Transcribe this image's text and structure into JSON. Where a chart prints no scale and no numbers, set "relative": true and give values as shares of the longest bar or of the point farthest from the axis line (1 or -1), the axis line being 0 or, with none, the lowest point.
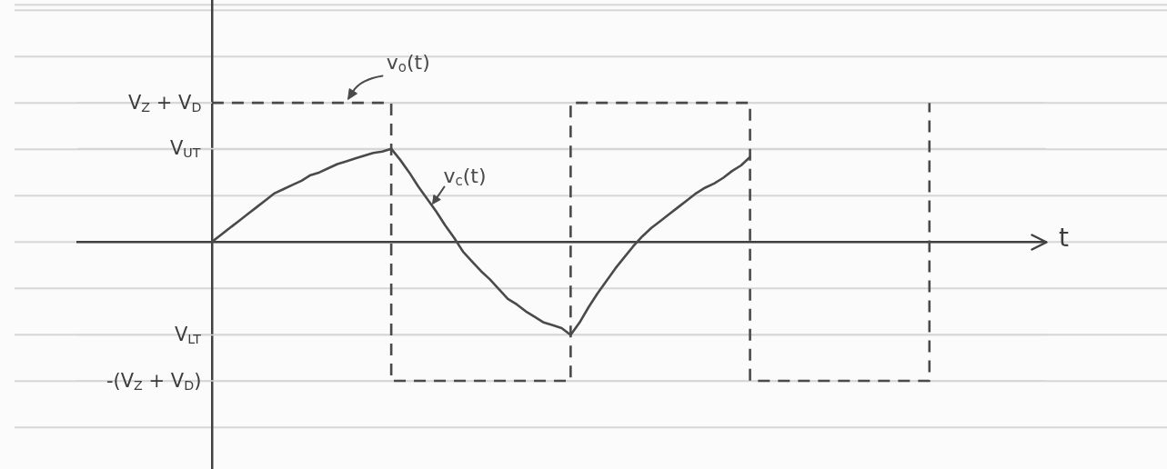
{
  "chart_data": {
    "type": "line",
    "xlabel": "t",
    "relative": true,
    "categories": [
      null,
      null,
      null,
      null,
      null,
      null,
      null,
      null,
      null,
      null,
      null,
      null,
      null,
      null,
      null,
      null,
      null,
      null,
      null,
      null,
      null,
      null,
      null,
      null,
      null,
      null,
      null,
      null,
      null,
      null,
      null,
      null,
      null,
      null,
      null,
      null,
      null,
      null,
      null,
      null,
      null,
      null,
      null,
      null,
      null,
      null,
      null,
      null,
      null,
      null,
      null,
      null,
      null,
      null,
      null,
      null,
      null,
      null,
      null,
      null,
      null,
      null,
      null,
      null,
      null,
      null,
      null,
      null,
      null,
      null,
      null,
      null,
      null,
      null,
      null,
      null,
      null,
      null,
      null,
      null,
      null,
      null,
      null,
      null,
      null,
      null,
      null,
      null,
      null,
      null,
      null,
      null,
      null,
      null,
      null,
      null,
      null,
      null,
      null,
      null,
      null,
      null,
      null,
      null,
      null,
      null,
      null,
      null,
      null
    ],
    "series": [
      {
        "name": "v$_{o}$(t)",
        "type": "step",
        "color": "#4a4a4a",
        "line_style": "dashed",
        "values": [
          null,
          null,
          null,
          null,
          null,
          null,
          null,
          null,
          null,
          null,
          null,
          null,
          null,
          null,
          null,
          1,
          1,
          1,
          1,
          1,
          1,
          1,
          1,
          1,
          1,
          1,
          1,
          1,
          1,
          1,
          1,
          1,
          1,
          1,
          1,
          -1,
          -1,
          -1,
          -1,
          -1,
          -1,
          -1,
          -1,
          -1,
          -1,
          -1,
          -1,
          -1,
          -1,
          -1,
          -1,
          -1,
          -1,
          -1,
          -1,
          1,
          1,
          1,
          1,
          1,
          1,
          1,
          1,
          1,
          1,
          1,
          1,
          1,
          1,
          1,
          1,
          1,
          1,
          1,
          1,
          -1,
          -1,
          -1,
          -1,
          -1,
          -1,
          -1,
          -1,
          -1,
          -1,
          -1,
          -1,
          -1,
          -1,
          -1,
          -1,
          -1,
          -1,
          -1,
          -1,
          1,
          null,
          null,
          null,
          null,
          null,
          null,
          null,
          null,
          null,
          null,
          null,
          null,
          null
        ]
      },
      {
        "name": "v$_{c}$(t)",
        "type": "line",
        "color": "#4a4a4a",
        "line_style": "solid",
        "values": [
          null,
          null,
          null,
          null,
          null,
          null,
          null,
          null,
          null,
          null,
          null,
          null,
          null,
          null,
          null,
          0,
          0.05,
          0.1,
          0.15,
          0.2,
          0.25,
          0.3,
          0.35,
          0.38,
          0.41,
          0.44,
          0.48,
          0.5,
          0.53,
          0.56,
          0.58,
          0.6,
          0.62,
          0.64,
          0.65,
          0.67,
          0.59,
          0.5,
          0.4,
          0.31,
          0.22,
          0.12,
          0.03,
          -0.07,
          -0.14,
          -0.21,
          -0.27,
          -0.34,
          -0.41,
          -0.45,
          -0.5,
          -0.54,
          -0.58,
          -0.6,
          -0.62,
          -0.67,
          -0.58,
          -0.47,
          -0.37,
          -0.28,
          -0.19,
          -0.11,
          -0.03,
          0.04,
          0.1,
          0.15,
          0.2,
          0.25,
          0.3,
          0.35,
          0.39,
          0.42,
          0.46,
          0.51,
          0.55,
          0.61,
          null,
          null,
          null,
          null,
          null,
          null,
          null,
          null,
          null,
          null,
          null,
          null,
          null,
          null,
          null,
          null,
          null,
          null,
          null,
          null,
          null,
          null,
          null,
          null,
          null,
          null,
          null,
          null,
          null,
          null,
          null,
          null,
          null
        ]
      }
    ],
    "ref_lines": [
      {
        "axis": "y",
        "value": 1,
        "label": "V$_{Z}$ + V$_{D}$",
        "color": "#d6d6d6"
      },
      {
        "axis": "y",
        "value": 0.67,
        "label": "V$_{UT}$",
        "color": "#d6d6d6"
      },
      {
        "axis": "y",
        "value": -0.67,
        "label": "V$_{LT}$",
        "color": "#d6d6d6"
      },
      {
        "axis": "y",
        "value": -1,
        "label": "-(V$_{Z}$ + V$_{D}$)",
        "color": "#d6d6d6"
      }
    ],
    "marker": "none"
  }
}
